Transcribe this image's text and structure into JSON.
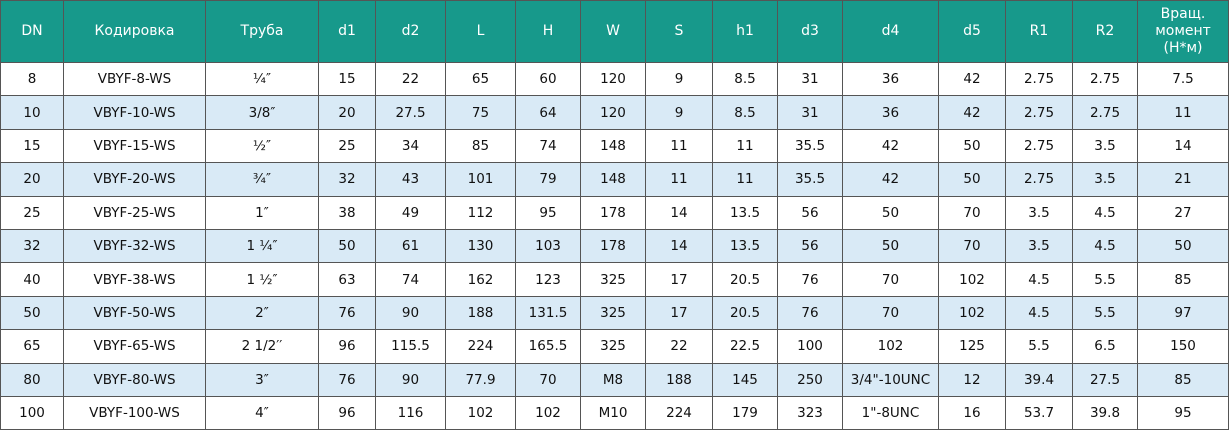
{
  "table": {
    "header": [
      "DN",
      "Кодировка",
      "Труба",
      "d1",
      "d2",
      "L",
      "H",
      "W",
      "S",
      "h1",
      "d3",
      "d4",
      "d5",
      "R1",
      "R2",
      "Вращ. момент (Н*м)"
    ],
    "rows": [
      [
        "8",
        "VBYF-8-WS",
        "¼″",
        "15",
        "22",
        "65",
        "60",
        "120",
        "9",
        "8.5",
        "31",
        "36",
        "42",
        "2.75",
        "2.75",
        "7.5"
      ],
      [
        "10",
        "VBYF-10-WS",
        "3/8″",
        "20",
        "27.5",
        "75",
        "64",
        "120",
        "9",
        "8.5",
        "31",
        "36",
        "42",
        "2.75",
        "2.75",
        "11"
      ],
      [
        "15",
        "VBYF-15-WS",
        "½″",
        "25",
        "34",
        "85",
        "74",
        "148",
        "11",
        "11",
        "35.5",
        "42",
        "50",
        "2.75",
        "3.5",
        "14"
      ],
      [
        "20",
        "VBYF-20-WS",
        "¾″",
        "32",
        "43",
        "101",
        "79",
        "148",
        "11",
        "11",
        "35.5",
        "42",
        "50",
        "2.75",
        "3.5",
        "21"
      ],
      [
        "25",
        "VBYF-25-WS",
        "1″",
        "38",
        "49",
        "112",
        "95",
        "178",
        "14",
        "13.5",
        "56",
        "50",
        "70",
        "3.5",
        "4.5",
        "27"
      ],
      [
        "32",
        "VBYF-32-WS",
        "1 ¼″",
        "50",
        "61",
        "130",
        "103",
        "178",
        "14",
        "13.5",
        "56",
        "50",
        "70",
        "3.5",
        "4.5",
        "50"
      ],
      [
        "40",
        "VBYF-38-WS",
        "1 ½″",
        "63",
        "74",
        "162",
        "123",
        "325",
        "17",
        "20.5",
        "76",
        "70",
        "102",
        "4.5",
        "5.5",
        "85"
      ],
      [
        "50",
        "VBYF-50-WS",
        "2″",
        "76",
        "90",
        "188",
        "131.5",
        "325",
        "17",
        "20.5",
        "76",
        "70",
        "102",
        "4.5",
        "5.5",
        "97"
      ],
      [
        "65",
        "VBYF-65-WS",
        "2 1/2′′",
        "96",
        "115.5",
        "224",
        "165.5",
        "325",
        "22",
        "22.5",
        "100",
        "102",
        "125",
        "5.5",
        "6.5",
        "150"
      ],
      [
        "80",
        "VBYF-80-WS",
        "3″",
        "76",
        "90",
        "77.9",
        "70",
        "M8",
        "188",
        "145",
        "250",
        "3/4\"-10UNC",
        "12",
        "39.4",
        "27.5",
        "85"
      ],
      [
        "100",
        "VBYF-100-WS",
        "4″",
        "96",
        "116",
        "102",
        "102",
        "M10",
        "224",
        "179",
        "323",
        "1\"-8UNC",
        "16",
        "53.7",
        "39.8",
        "95"
      ]
    ]
  }
}
